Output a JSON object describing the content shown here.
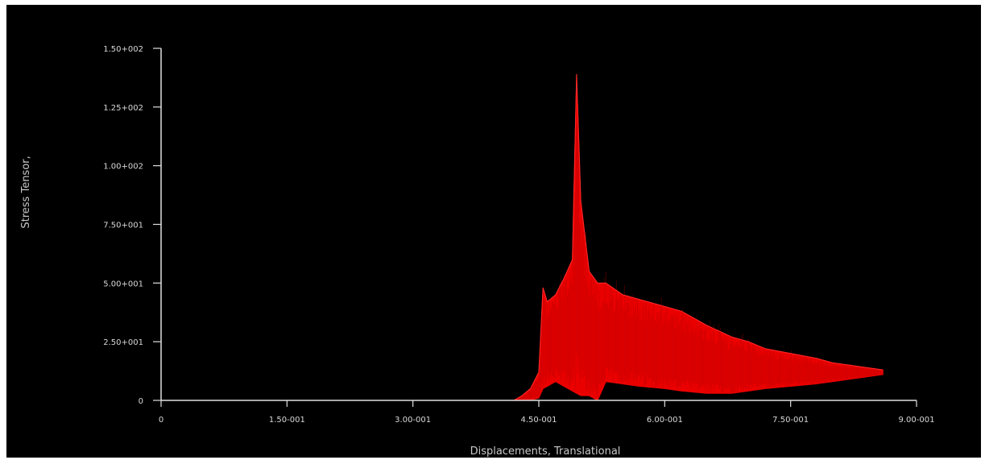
{
  "chart_data": {
    "type": "area",
    "title": "",
    "xlabel": "Displacements, Translational",
    "ylabel": "Stress Tensor,",
    "xlim": [
      0,
      0.9
    ],
    "ylim": [
      0,
      150
    ],
    "grid": false,
    "background_color": "#000000",
    "axis_color": "#e0e0e0",
    "text_color": "#d0d0d0",
    "xticks": [
      {
        "value": 0,
        "label": "0"
      },
      {
        "value": 0.15,
        "label": "1.50-001"
      },
      {
        "value": 0.3,
        "label": "3.00-001"
      },
      {
        "value": 0.45,
        "label": "4.50-001"
      },
      {
        "value": 0.6,
        "label": "6.00-001"
      },
      {
        "value": 0.75,
        "label": "7.50-001"
      },
      {
        "value": 0.9,
        "label": "9.00-001"
      }
    ],
    "yticks": [
      {
        "value": 0,
        "label": "0"
      },
      {
        "value": 25,
        "label": "2.50+001"
      },
      {
        "value": 50,
        "label": "5.00+001"
      },
      {
        "value": 75,
        "label": "7.50+001"
      },
      {
        "value": 100,
        "label": "1.00+002"
      },
      {
        "value": 125,
        "label": "1.25+002"
      },
      {
        "value": 150,
        "label": "1.50+002"
      }
    ],
    "series": [
      {
        "color": "#ff0000",
        "x": [
          0.42,
          0.43,
          0.44,
          0.45,
          0.455,
          0.46,
          0.47,
          0.48,
          0.49,
          0.495,
          0.5,
          0.51,
          0.52,
          0.53,
          0.55,
          0.57,
          0.6,
          0.62,
          0.65,
          0.68,
          0.7,
          0.72,
          0.75,
          0.78,
          0.8,
          0.82,
          0.84,
          0.86
        ],
        "upper": [
          0,
          2,
          5,
          12,
          48,
          42,
          45,
          52,
          60,
          139,
          85,
          55,
          50,
          50,
          45,
          43,
          40,
          38,
          32,
          27,
          25,
          22,
          20,
          18,
          16,
          15,
          14,
          13
        ],
        "lower": [
          0,
          0,
          0,
          1,
          5,
          6,
          8,
          6,
          4,
          3,
          2,
          2,
          0,
          8,
          7,
          6,
          5,
          4,
          3,
          3,
          4,
          5,
          6,
          7,
          8,
          9,
          10,
          11
        ]
      }
    ]
  }
}
